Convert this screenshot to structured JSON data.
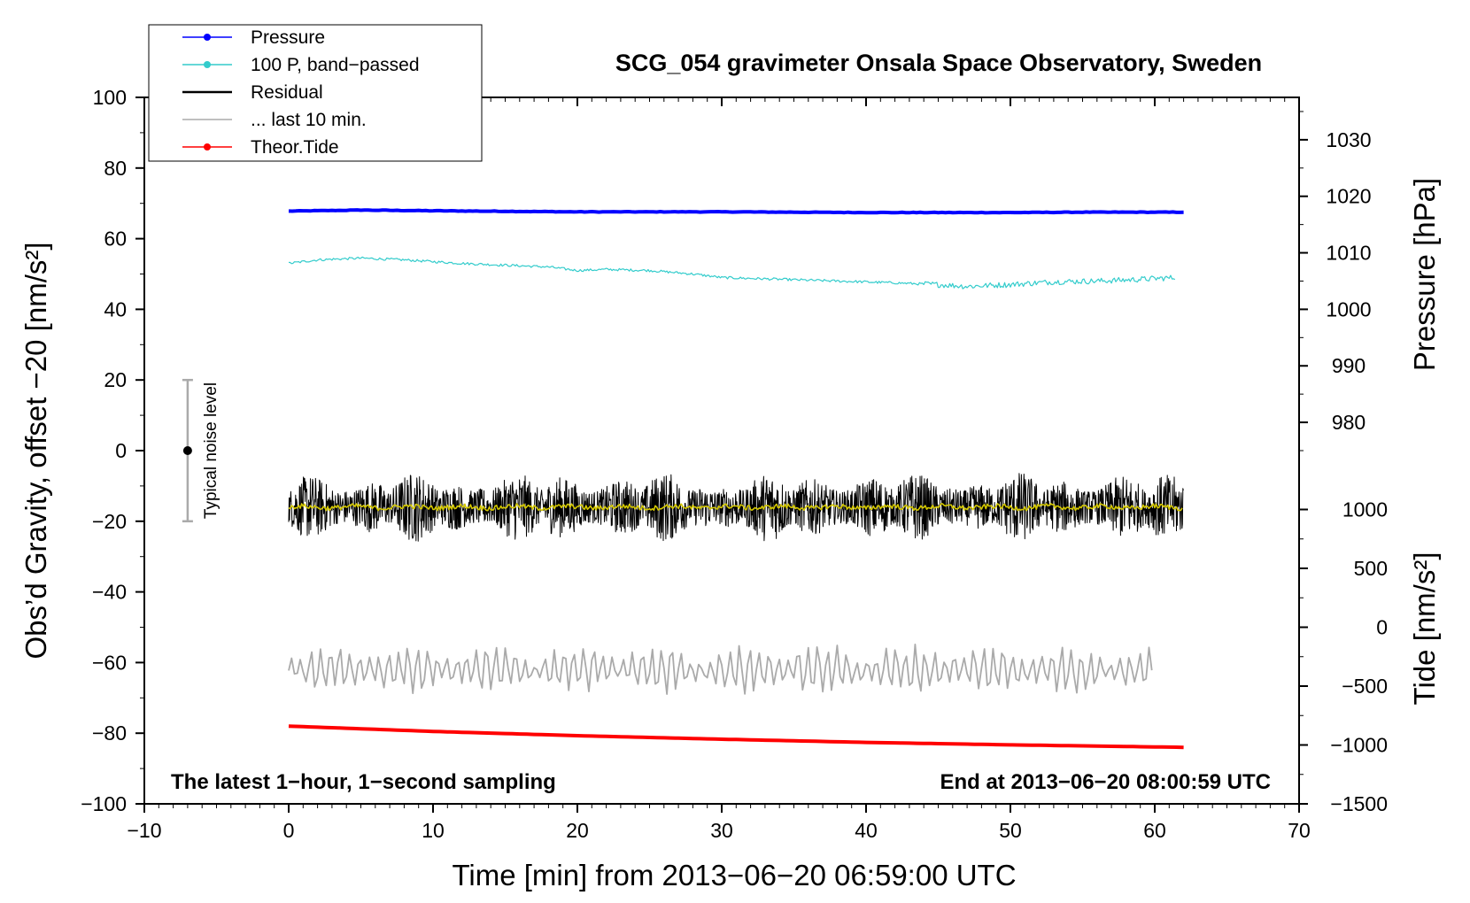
{
  "chart_data": {
    "type": "line",
    "title": "SCG_054 gravimeter Onsala Space Observatory, Sweden",
    "xlabel": "Time [min] from 2013−06−20 06:59:00 UTC",
    "ylabel": "Obs’d Gravity, offset −20 [nm/s²]",
    "ylabel_right_top": "Pressure [hPa]",
    "ylabel_right_bottom": "Tide [nm/s²]",
    "xlim": [
      -10,
      70
    ],
    "ylim": [
      -100,
      100
    ],
    "xticks": [
      -10,
      0,
      10,
      20,
      30,
      40,
      50,
      60,
      70
    ],
    "xtick_labels": [
      "−10",
      "0",
      "10",
      "20",
      "30",
      "40",
      "50",
      "60",
      "70"
    ],
    "yticks": [
      -100,
      -80,
      -60,
      -40,
      -20,
      0,
      20,
      40,
      60,
      80,
      100
    ],
    "ytick_labels": [
      "−100",
      "−80",
      "−60",
      "−40",
      "−20",
      "0",
      "20",
      "40",
      "60",
      "80",
      "100"
    ],
    "pressure_axis": {
      "ticks": [
        980,
        990,
        1000,
        1010,
        1020,
        1030
      ],
      "tick_labels": [
        "980",
        "990",
        "1000",
        "1010",
        "1020",
        "1030"
      ],
      "gravity_at_1000": 40,
      "gravity_per_hPa": 1.6
    },
    "tide_axis": {
      "ticks": [
        -1500,
        -1000,
        -500,
        0,
        500,
        1000
      ],
      "tick_labels": [
        "−1500",
        "−1000",
        "−500",
        "0",
        "500",
        "1000"
      ],
      "gravity_at_minus1500": -100,
      "gravity_per_unit": 0.033333
    },
    "annotations": {
      "bottom_left": "The latest 1−hour, 1−second sampling",
      "bottom_right": "End at 2013−06−20 08:00:59 UTC",
      "noise_label": "Typical noise level",
      "noise_bar": {
        "x": -7,
        "center": 0,
        "low": -20,
        "high": 20
      }
    },
    "legend": {
      "position": "top-left",
      "entries": [
        {
          "label": "Pressure",
          "color": "#0000ff",
          "marker": "dot"
        },
        {
          "label": "100 P, band−passed",
          "color": "#33cccc",
          "marker": "dot"
        },
        {
          "label": "Residual",
          "color": "#000000",
          "marker": "none"
        },
        {
          "label": "... last 10 min.",
          "color": "#aaaaaa",
          "marker": "none"
        },
        {
          "label": "Theor.Tide",
          "color": "#ff0000",
          "marker": "dot"
        }
      ]
    },
    "series": [
      {
        "name": "Pressure",
        "color": "#0000ff",
        "x": [
          0,
          5,
          10,
          20,
          30,
          40,
          50,
          55,
          62
        ],
        "values": [
          67.8,
          68.1,
          67.9,
          67.6,
          67.6,
          67.4,
          67.4,
          67.5,
          67.5
        ]
      },
      {
        "name": "100 P, band−passed",
        "color": "#33cccc",
        "x": [
          0,
          2,
          5,
          8,
          12,
          15,
          18,
          20,
          22,
          25,
          28,
          30,
          34,
          38,
          42,
          45,
          47,
          50,
          53,
          56,
          58,
          60,
          61.5
        ],
        "values": [
          53,
          54,
          54.5,
          54,
          53,
          52.5,
          52,
          51,
          51.3,
          51,
          50,
          49,
          48.5,
          48,
          47.5,
          47,
          46.5,
          47,
          47.8,
          48,
          48.3,
          48.7,
          49
        ]
      },
      {
        "name": "Residual",
        "color": "#000000",
        "x_range": [
          0,
          62
        ],
        "mean": -16,
        "amplitude": 7
      },
      {
        "name": "Residual (smoothed)",
        "color": "#d4c800",
        "x_range": [
          0,
          62
        ],
        "mean": -16,
        "amplitude": 0.7
      },
      {
        "name": "... last 10 min.",
        "color": "#aaaaaa",
        "x_range": [
          0,
          60
        ],
        "mean": -62,
        "amplitude": 5
      },
      {
        "name": "Theor.Tide",
        "color": "#ff0000",
        "x": [
          0,
          10,
          20,
          30,
          40,
          50,
          62
        ],
        "values": [
          -78,
          -79.5,
          -80.7,
          -81.7,
          -82.6,
          -83.3,
          -84
        ]
      }
    ]
  }
}
